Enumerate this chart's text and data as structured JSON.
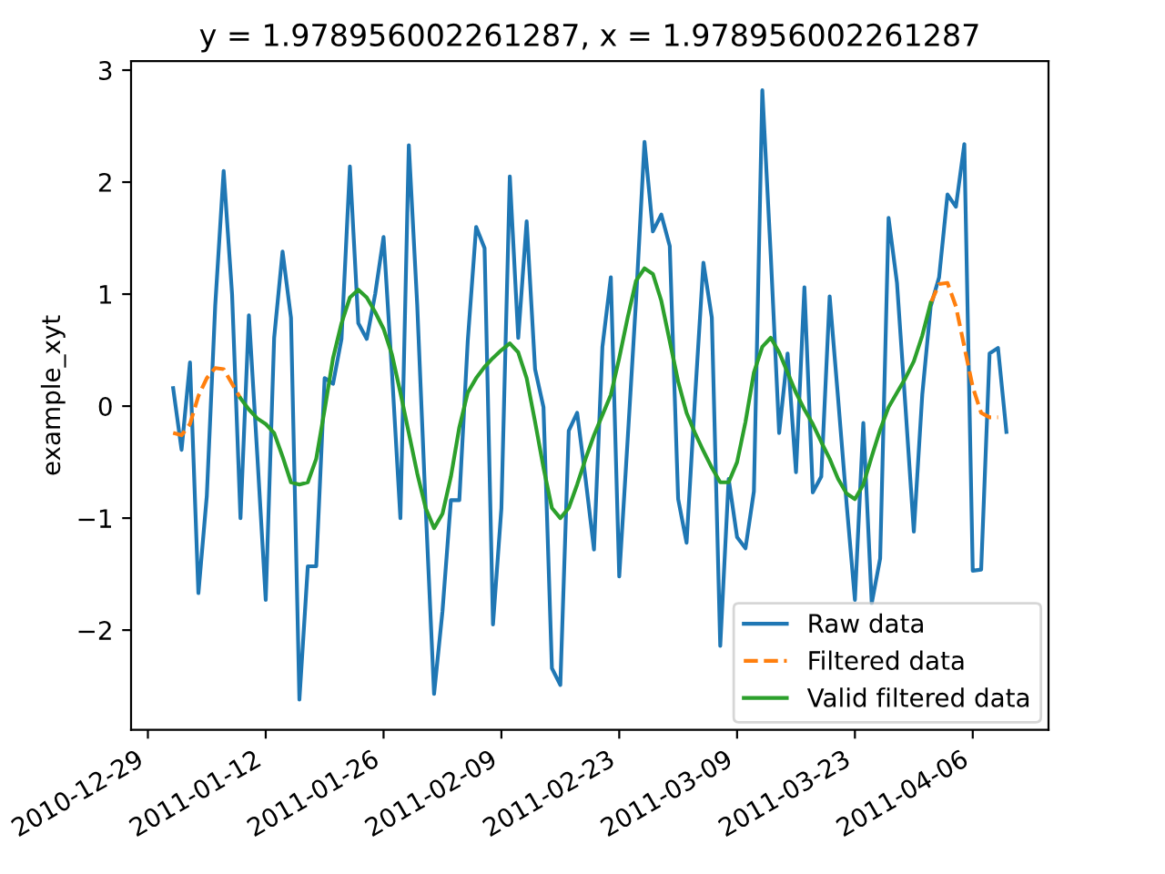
{
  "chart_data": {
    "type": "line",
    "title": "y = 1.978956002261287, x = 1.978956002261287",
    "ylabel": "example_xyt",
    "x": [
      "2011-01-01",
      "2011-01-02",
      "2011-01-03",
      "2011-01-04",
      "2011-01-05",
      "2011-01-06",
      "2011-01-07",
      "2011-01-08",
      "2011-01-09",
      "2011-01-10",
      "2011-01-11",
      "2011-01-12",
      "2011-01-13",
      "2011-01-14",
      "2011-01-15",
      "2011-01-16",
      "2011-01-17",
      "2011-01-18",
      "2011-01-19",
      "2011-01-20",
      "2011-01-21",
      "2011-01-22",
      "2011-01-23",
      "2011-01-24",
      "2011-01-25",
      "2011-01-26",
      "2011-01-27",
      "2011-01-28",
      "2011-01-29",
      "2011-01-30",
      "2011-01-31",
      "2011-02-01",
      "2011-02-02",
      "2011-02-03",
      "2011-02-04",
      "2011-02-05",
      "2011-02-06",
      "2011-02-07",
      "2011-02-08",
      "2011-02-09",
      "2011-02-10",
      "2011-02-11",
      "2011-02-12",
      "2011-02-13",
      "2011-02-14",
      "2011-02-15",
      "2011-02-16",
      "2011-02-17",
      "2011-02-18",
      "2011-02-19",
      "2011-02-20",
      "2011-02-21",
      "2011-02-22",
      "2011-02-23",
      "2011-02-24",
      "2011-02-25",
      "2011-02-26",
      "2011-02-27",
      "2011-02-28",
      "2011-03-01",
      "2011-03-02",
      "2011-03-03",
      "2011-03-04",
      "2011-03-05",
      "2011-03-06",
      "2011-03-07",
      "2011-03-08",
      "2011-03-09",
      "2011-03-10",
      "2011-03-11",
      "2011-03-12",
      "2011-03-13",
      "2011-03-14",
      "2011-03-15",
      "2011-03-16",
      "2011-03-17",
      "2011-03-18",
      "2011-03-19",
      "2011-03-20",
      "2011-03-21",
      "2011-03-22",
      "2011-03-23",
      "2011-03-24",
      "2011-03-25",
      "2011-03-26",
      "2011-03-27",
      "2011-03-28",
      "2011-03-29",
      "2011-03-30",
      "2011-03-31",
      "2011-04-01",
      "2011-04-02",
      "2011-04-03",
      "2011-04-04",
      "2011-04-05",
      "2011-04-06",
      "2011-04-07",
      "2011-04-08",
      "2011-04-09",
      "2011-04-10"
    ],
    "series": [
      {
        "name": "Raw data",
        "color": "#1f77b4",
        "line_style": "solid",
        "values": [
          0.16,
          -0.39,
          0.39,
          -1.67,
          -0.8,
          0.9,
          2.1,
          1.0,
          -1.0,
          0.81,
          -0.44,
          -1.73,
          0.61,
          1.38,
          0.79,
          -2.62,
          -1.43,
          -1.43,
          0.25,
          0.2,
          0.6,
          2.14,
          0.74,
          0.6,
          1.0,
          1.51,
          0.3,
          -1.0,
          2.33,
          0.9,
          -0.9,
          -2.57,
          -1.83,
          -0.84,
          -0.84,
          0.58,
          1.6,
          1.41,
          -1.95,
          -0.91,
          2.05,
          0.61,
          1.65,
          0.33,
          -0.01,
          -2.34,
          -2.49,
          -0.22,
          -0.06,
          -0.65,
          -1.28,
          0.53,
          1.15,
          -1.52,
          -0.3,
          0.95,
          2.36,
          1.56,
          1.71,
          1.43,
          -0.83,
          -1.22,
          0.07,
          1.28,
          0.79,
          -2.14,
          -0.65,
          -1.17,
          -1.27,
          -0.76,
          2.82,
          1.35,
          -0.24,
          0.47,
          -0.59,
          1.06,
          -0.77,
          -0.63,
          0.98,
          0.07,
          -0.86,
          -1.73,
          -0.15,
          -1.76,
          -1.36,
          1.68,
          1.1,
          0.0,
          -1.12,
          0.1,
          0.89,
          1.15,
          1.89,
          1.78,
          2.34,
          -1.47,
          -1.46,
          0.47,
          0.52,
          -0.23
        ]
      },
      {
        "name": "Filtered data",
        "color": "#ff7f0e",
        "line_style": "dashed",
        "values": [
          -0.24,
          -0.26,
          -0.16,
          0.09,
          0.25,
          0.34,
          0.33,
          0.2,
          0.07,
          null,
          null,
          null,
          null,
          null,
          null,
          null,
          null,
          null,
          null,
          null,
          null,
          null,
          null,
          null,
          null,
          null,
          null,
          null,
          null,
          null,
          null,
          null,
          null,
          null,
          null,
          null,
          null,
          null,
          null,
          null,
          null,
          null,
          null,
          null,
          null,
          null,
          null,
          null,
          null,
          null,
          null,
          null,
          null,
          null,
          null,
          null,
          null,
          null,
          null,
          null,
          null,
          null,
          null,
          null,
          null,
          null,
          null,
          null,
          null,
          null,
          null,
          null,
          null,
          null,
          null,
          null,
          null,
          null,
          null,
          null,
          null,
          null,
          null,
          null,
          null,
          null,
          null,
          null,
          null,
          null,
          0.92,
          1.09,
          1.1,
          0.89,
          0.53,
          0.17,
          -0.06,
          -0.1,
          -0.1,
          null
        ]
      },
      {
        "name": "Valid filtered data",
        "color": "#2ca02c",
        "line_style": "solid",
        "values": [
          null,
          null,
          null,
          null,
          null,
          null,
          null,
          null,
          0.07,
          -0.03,
          -0.11,
          -0.16,
          -0.24,
          -0.45,
          -0.68,
          -0.7,
          -0.68,
          -0.47,
          -0.03,
          0.43,
          0.74,
          0.97,
          1.04,
          0.97,
          0.84,
          0.69,
          0.46,
          0.12,
          -0.24,
          -0.6,
          -0.91,
          -1.09,
          -0.96,
          -0.63,
          -0.19,
          0.12,
          0.25,
          0.35,
          0.43,
          0.5,
          0.56,
          0.48,
          0.25,
          -0.14,
          -0.55,
          -0.91,
          -1.0,
          -0.91,
          -0.7,
          -0.47,
          -0.26,
          -0.08,
          0.1,
          0.43,
          0.79,
          1.12,
          1.23,
          1.18,
          0.94,
          0.58,
          0.22,
          -0.06,
          -0.24,
          -0.4,
          -0.55,
          -0.68,
          -0.68,
          -0.5,
          -0.14,
          0.3,
          0.53,
          0.61,
          0.48,
          0.3,
          0.12,
          -0.03,
          -0.16,
          -0.32,
          -0.47,
          -0.65,
          -0.78,
          -0.83,
          -0.7,
          -0.45,
          -0.21,
          -0.01,
          0.12,
          0.25,
          0.4,
          0.63,
          0.92,
          null,
          null,
          null,
          null,
          null,
          null,
          null,
          null,
          null
        ]
      }
    ],
    "xlim": [
      "2010-12-27",
      "2011-04-15"
    ],
    "xticks": [
      "2010-12-29",
      "2011-01-12",
      "2011-01-26",
      "2011-02-09",
      "2011-02-23",
      "2011-03-09",
      "2011-03-23",
      "2011-04-06"
    ],
    "ylim": [
      -2.89,
      3.08
    ],
    "yticks": [
      {
        "value": -2,
        "label": "−2"
      },
      {
        "value": -1,
        "label": "−1"
      },
      0,
      1,
      2,
      3
    ],
    "legend": "lower right",
    "grid": false
  }
}
